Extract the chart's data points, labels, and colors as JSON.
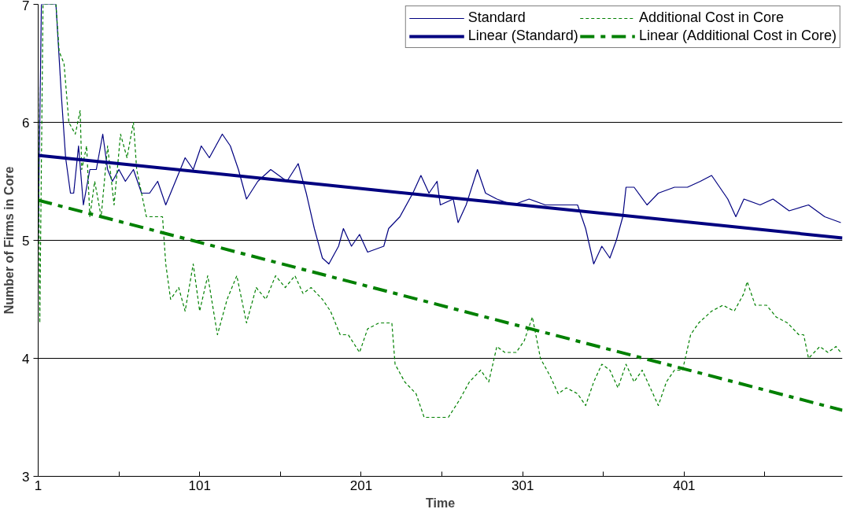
{
  "chart_data": {
    "type": "line",
    "xlabel": "Time",
    "ylabel": "Number of Firms in Core",
    "xlim": [
      1,
      499
    ],
    "ylim": [
      3,
      7
    ],
    "xticks": [
      1,
      {
        "value": 51,
        "label": null
      },
      101,
      {
        "value": 151,
        "label": null
      },
      201,
      {
        "value": 251,
        "label": null
      },
      301,
      {
        "value": 351,
        "label": null
      },
      401,
      {
        "value": 451,
        "label": null
      }
    ],
    "yticks": [
      3,
      4,
      5,
      6,
      7
    ],
    "grid": "y",
    "legend": "top",
    "marker": "none",
    "series": [
      {
        "name": "Standard",
        "color": "#000080",
        "line_style": "solid",
        "x": [
          1,
          3,
          12,
          15.5,
          18,
          21,
          23,
          26,
          29,
          33,
          37,
          41,
          44,
          47,
          51,
          55,
          60,
          65,
          70,
          75,
          80,
          86,
          92,
          97,
          102,
          107,
          115,
          120,
          125,
          130,
          137,
          145,
          155,
          162,
          167,
          172,
          177,
          181,
          187,
          190,
          195,
          200,
          205,
          215,
          218,
          225,
          233,
          238,
          243,
          248,
          250,
          258,
          261,
          266,
          273,
          278,
          285,
          295,
          305,
          315,
          325,
          335,
          340,
          345,
          350,
          355,
          359,
          363,
          365,
          370,
          378,
          385,
          395,
          403,
          411,
          418,
          423,
          428,
          433,
          438,
          448,
          456,
          466,
          478,
          488,
          498
        ],
        "values": [
          5.0,
          7.0,
          7.0,
          6.2,
          5.7,
          5.4,
          5.4,
          5.8,
          5.3,
          5.6,
          5.6,
          5.9,
          5.6,
          5.5,
          5.6,
          5.5,
          5.6,
          5.4,
          5.4,
          5.5,
          5.3,
          5.5,
          5.7,
          5.6,
          5.8,
          5.7,
          5.9,
          5.8,
          5.6,
          5.35,
          5.5,
          5.6,
          5.5,
          5.65,
          5.4,
          5.1,
          4.85,
          4.8,
          4.95,
          5.1,
          4.95,
          5.05,
          4.9,
          4.95,
          5.1,
          5.2,
          5.4,
          5.55,
          5.4,
          5.5,
          5.3,
          5.35,
          5.15,
          5.3,
          5.6,
          5.4,
          5.35,
          5.3,
          5.35,
          5.3,
          5.3,
          5.3,
          5.1,
          4.8,
          4.95,
          4.85,
          5.0,
          5.2,
          5.45,
          5.45,
          5.3,
          5.4,
          5.45,
          5.45,
          5.5,
          5.55,
          5.45,
          5.35,
          5.2,
          5.35,
          5.3,
          5.35,
          5.25,
          5.3,
          5.2,
          5.15
        ]
      },
      {
        "name": "Additional Cost in Core",
        "color": "#008000",
        "line_style": "dashed",
        "x": [
          1,
          2,
          4,
          12,
          14,
          17,
          20,
          24,
          27,
          28,
          31,
          33,
          36,
          40,
          44,
          48,
          52,
          56,
          60,
          62,
          65,
          68,
          72,
          78,
          80,
          83,
          88,
          92,
          97,
          101,
          106,
          112,
          118,
          124,
          130,
          136,
          142,
          148,
          154,
          160,
          165,
          170,
          177,
          182,
          188,
          193,
          200,
          205,
          212,
          220,
          222,
          228,
          235,
          240,
          248,
          255,
          262,
          268,
          275,
          280,
          285,
          290,
          297,
          302,
          307,
          312,
          318,
          323,
          328,
          335,
          340,
          345,
          350,
          355,
          360,
          365,
          370,
          375,
          380,
          385,
          390,
          395,
          400,
          405,
          410,
          418,
          425,
          432,
          438,
          440,
          445,
          452,
          458,
          465,
          472,
          475,
          478,
          485,
          490,
          495,
          498
        ],
        "values": [
          6.3,
          4.3,
          7.0,
          7.0,
          6.6,
          6.5,
          6.0,
          5.9,
          6.1,
          5.6,
          5.8,
          5.2,
          5.5,
          5.2,
          5.8,
          5.3,
          5.9,
          5.7,
          6.0,
          5.6,
          5.4,
          5.2,
          5.2,
          5.2,
          4.8,
          4.5,
          4.6,
          4.4,
          4.8,
          4.4,
          4.7,
          4.2,
          4.5,
          4.7,
          4.3,
          4.6,
          4.5,
          4.7,
          4.6,
          4.7,
          4.55,
          4.6,
          4.5,
          4.4,
          4.2,
          4.2,
          4.05,
          4.25,
          4.3,
          4.3,
          3.95,
          3.8,
          3.7,
          3.5,
          3.5,
          3.5,
          3.65,
          3.8,
          3.9,
          3.8,
          4.1,
          4.05,
          4.05,
          4.15,
          4.35,
          4.0,
          3.85,
          3.7,
          3.75,
          3.7,
          3.6,
          3.8,
          3.95,
          3.9,
          3.75,
          3.95,
          3.8,
          3.9,
          3.75,
          3.6,
          3.8,
          3.9,
          3.9,
          4.2,
          4.3,
          4.4,
          4.45,
          4.4,
          4.55,
          4.65,
          4.45,
          4.45,
          4.35,
          4.3,
          4.2,
          4.2,
          4.0,
          4.1,
          4.05,
          4.1,
          4.05
        ]
      },
      {
        "name": "Linear (Standard)",
        "type": "line",
        "color": "#000080",
        "line_style": "solid",
        "x": [
          1,
          499
        ],
        "values": [
          5.72,
          5.02
        ]
      },
      {
        "name": "Linear (Additional Cost in Core)",
        "type": "line",
        "color": "#008000",
        "line_style": "dashed",
        "x": [
          1,
          499
        ],
        "values": [
          5.34,
          3.56
        ]
      }
    ]
  }
}
